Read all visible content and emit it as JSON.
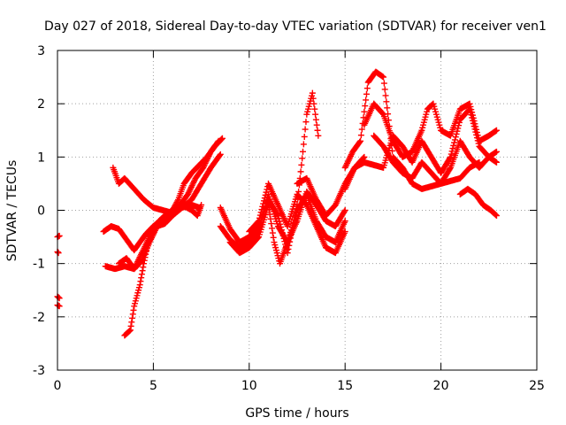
{
  "chart_data": {
    "type": "scatter",
    "title": "Day 027 of 2018, Sidereal Day-to-day VTEC variation (SDTVAR) for receiver ven1",
    "xlabel": "GPS time / hours",
    "ylabel": "SDTVAR / TECUs",
    "xlim": [
      0,
      25
    ],
    "ylim": [
      -3,
      3
    ],
    "xticks": [
      0,
      5,
      10,
      15,
      20,
      25
    ],
    "yticks": [
      -3,
      -2,
      -1,
      0,
      1,
      2,
      3
    ],
    "grid": true,
    "marker": "+",
    "color": "#ff0000",
    "series": [
      {
        "name": "trace-1",
        "x": [
          0.0,
          0.1
        ],
        "y": [
          -0.5,
          -0.48
        ]
      },
      {
        "name": "trace-2",
        "x": [
          0.0,
          0.05
        ],
        "y": [
          -0.78,
          -0.8
        ]
      },
      {
        "name": "trace-3",
        "x": [
          0.0,
          0.1
        ],
        "y": [
          -1.62,
          -1.65
        ]
      },
      {
        "name": "trace-4",
        "x": [
          0.0,
          0.1
        ],
        "y": [
          -1.78,
          -1.8
        ]
      },
      {
        "name": "trace-5",
        "x": [
          2.4,
          2.8,
          3.2,
          3.6,
          4.0,
          4.3,
          4.6,
          5.0,
          5.5,
          6.0,
          6.5,
          7.0,
          7.3,
          7.5
        ],
        "y": [
          -0.4,
          -0.3,
          -0.35,
          -0.55,
          -0.75,
          -0.6,
          -0.45,
          -0.3,
          -0.15,
          -0.05,
          0.1,
          0.0,
          -0.1,
          0.1
        ]
      },
      {
        "name": "trace-6",
        "x": [
          2.5,
          3.0,
          3.5,
          4.0,
          4.4,
          4.8,
          5.2,
          5.6,
          6.0,
          6.4,
          6.8,
          7.2,
          7.6,
          8.0,
          8.4
        ],
        "y": [
          -1.05,
          -1.1,
          -1.05,
          -1.1,
          -0.95,
          -0.6,
          -0.3,
          -0.1,
          0.0,
          0.1,
          0.3,
          0.6,
          0.8,
          1.1,
          1.3
        ]
      },
      {
        "name": "trace-7",
        "x": [
          2.9,
          3.2,
          3.5,
          4.0,
          4.5,
          5.0,
          5.5,
          6.0,
          6.5,
          7.0,
          7.4
        ],
        "y": [
          0.8,
          0.5,
          0.6,
          0.4,
          0.2,
          0.05,
          0.0,
          -0.05,
          0.05,
          0.1,
          0.05
        ]
      },
      {
        "name": "trace-8",
        "x": [
          3.5,
          3.8,
          4.0,
          4.3,
          4.5,
          4.7,
          5.0,
          5.3,
          5.6,
          6.0
        ],
        "y": [
          -2.35,
          -2.25,
          -1.8,
          -1.4,
          -1.0,
          -0.65,
          -0.4,
          -0.2,
          -0.1,
          0.0
        ]
      },
      {
        "name": "trace-9",
        "x": [
          3.2,
          3.6,
          4.0,
          4.4,
          4.8,
          5.2,
          5.6,
          6.0,
          6.5,
          7.0,
          7.5,
          8.0,
          8.5
        ],
        "y": [
          -1.0,
          -0.9,
          -1.1,
          -0.8,
          -0.5,
          -0.3,
          -0.25,
          -0.1,
          0.05,
          0.2,
          0.5,
          0.8,
          1.05
        ]
      },
      {
        "name": "trace-10",
        "x": [
          5.5,
          6.0,
          6.3,
          6.6,
          7.0,
          7.4,
          7.8,
          8.2,
          8.6
        ],
        "y": [
          -0.2,
          0.0,
          0.2,
          0.5,
          0.7,
          0.85,
          1.0,
          1.2,
          1.35
        ]
      },
      {
        "name": "trace-11",
        "x": [
          8.5,
          9.0,
          9.5,
          10.0,
          10.5,
          11.0,
          11.5,
          12.0,
          12.5,
          12.8,
          13.0,
          13.3,
          13.6
        ],
        "y": [
          0.05,
          -0.35,
          -0.6,
          -0.5,
          -0.3,
          0.2,
          -0.1,
          -0.8,
          0.1,
          1.1,
          1.8,
          2.2,
          1.4
        ]
      },
      {
        "name": "trace-12",
        "x": [
          8.5,
          9.0,
          9.5,
          10.0,
          10.5,
          11.0,
          11.5,
          12.0,
          12.5,
          13.0,
          13.5,
          14.0,
          14.5,
          15.0
        ],
        "y": [
          -0.3,
          -0.55,
          -0.7,
          -0.6,
          -0.4,
          0.3,
          -0.3,
          -0.6,
          -0.2,
          0.35,
          0.1,
          -0.2,
          -0.3,
          0.0
        ]
      },
      {
        "name": "trace-13",
        "x": [
          9.0,
          9.5,
          10.0,
          10.5,
          11.0,
          11.3,
          11.6,
          12.0,
          12.5,
          13.0,
          13.5,
          14.0,
          14.5,
          15.0
        ],
        "y": [
          -0.6,
          -0.8,
          -0.7,
          -0.5,
          0.1,
          -0.6,
          -1.0,
          -0.6,
          0.0,
          0.3,
          -0.2,
          -0.5,
          -0.6,
          -0.2
        ]
      },
      {
        "name": "trace-14",
        "x": [
          10.0,
          10.5,
          11.0,
          11.5,
          12.0,
          12.5,
          13.0,
          13.5,
          14.0,
          14.5,
          15.0
        ],
        "y": [
          -0.4,
          -0.2,
          0.5,
          0.1,
          -0.3,
          0.3,
          0.1,
          -0.3,
          -0.7,
          -0.8,
          -0.4
        ]
      },
      {
        "name": "trace-15",
        "x": [
          12.5,
          13.0,
          13.5,
          14.0,
          14.5,
          15.0,
          15.5,
          16.0
        ],
        "y": [
          0.5,
          0.6,
          0.2,
          -0.1,
          0.1,
          0.5,
          0.8,
          1.0
        ]
      },
      {
        "name": "trace-16",
        "x": [
          15.0,
          15.4,
          15.8,
          16.2,
          16.6,
          17.0,
          17.5,
          18.0,
          18.5,
          19.0,
          19.5,
          20.0,
          20.5,
          21.0,
          21.5,
          22.0
        ],
        "y": [
          0.8,
          1.1,
          1.3,
          2.4,
          2.6,
          2.5,
          1.0,
          0.8,
          0.5,
          0.4,
          0.45,
          0.5,
          0.55,
          0.6,
          0.8,
          0.9
        ]
      },
      {
        "name": "trace-17",
        "x": [
          15.0,
          15.5,
          16.0,
          16.5,
          17.0,
          17.5,
          18.0,
          18.5,
          19.0,
          19.5,
          20.0,
          20.5,
          21.0,
          21.5,
          22.0,
          22.5,
          22.9
        ],
        "y": [
          0.4,
          0.8,
          0.9,
          0.85,
          0.8,
          1.4,
          1.2,
          0.9,
          1.3,
          1.0,
          0.7,
          1.0,
          1.7,
          1.9,
          1.2,
          1.0,
          0.9
        ]
      },
      {
        "name": "trace-18",
        "x": [
          16.0,
          16.5,
          17.0,
          17.5,
          18.0,
          18.5,
          19.0,
          19.3,
          19.6,
          20.0,
          20.5,
          21.0,
          21.5,
          22.0,
          22.5,
          22.9
        ],
        "y": [
          1.6,
          2.0,
          1.8,
          1.3,
          1.0,
          1.1,
          1.5,
          1.9,
          2.0,
          1.5,
          1.4,
          1.9,
          2.0,
          1.3,
          1.4,
          1.5
        ]
      },
      {
        "name": "trace-19",
        "x": [
          16.5,
          17.0,
          17.5,
          18.0,
          18.5,
          19.0,
          19.5,
          20.0,
          20.5,
          21.0,
          21.5,
          22.0,
          22.5,
          22.9
        ],
        "y": [
          1.4,
          1.2,
          0.9,
          0.7,
          0.6,
          0.9,
          0.7,
          0.5,
          0.8,
          1.3,
          1.0,
          0.8,
          1.0,
          1.1
        ]
      },
      {
        "name": "trace-20",
        "x": [
          21.0,
          21.4,
          21.8,
          22.2,
          22.6,
          22.9
        ],
        "y": [
          0.3,
          0.4,
          0.3,
          0.1,
          0.0,
          -0.1
        ]
      }
    ]
  }
}
